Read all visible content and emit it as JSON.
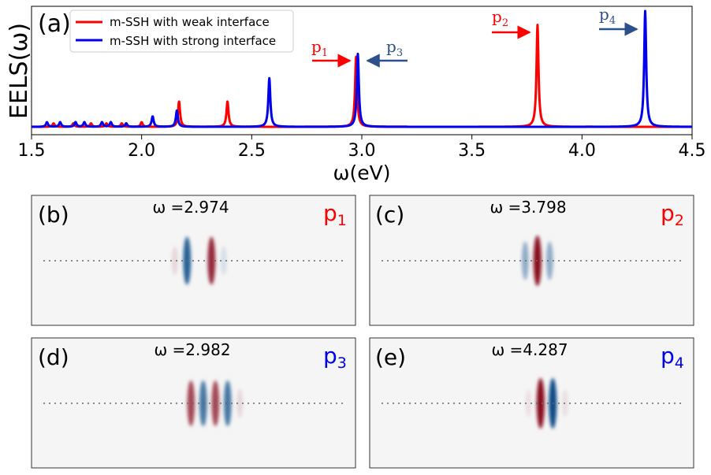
{
  "chart_data": [
    {
      "type": "line",
      "panel_label": "(a)",
      "ylabel": "EELS(ω)",
      "xlabel": "ω(eV)",
      "xlim": [
        1.5,
        4.5
      ],
      "x_ticks": [
        "1.5",
        "2.0",
        "2.5",
        "3.0",
        "3.5",
        "4.0",
        "4.5"
      ],
      "y_ticks_shown": false,
      "legend": [
        {
          "label": "m-SSH with weak interface",
          "color": "#ff0000"
        },
        {
          "label": "m-SSH with strong interface",
          "color": "#0000ee"
        }
      ],
      "series": [
        {
          "name": "m-SSH with weak interface",
          "color": "#ff0000",
          "peaks": [
            {
              "x": 1.6,
              "y": 0.03
            },
            {
              "x": 1.69,
              "y": 0.03
            },
            {
              "x": 1.77,
              "y": 0.03
            },
            {
              "x": 1.84,
              "y": 0.03
            },
            {
              "x": 1.91,
              "y": 0.03
            },
            {
              "x": 2.0,
              "y": 0.04
            },
            {
              "x": 2.17,
              "y": 0.22
            },
            {
              "x": 2.39,
              "y": 0.22
            },
            {
              "x": 2.974,
              "y": 0.61
            },
            {
              "x": 3.798,
              "y": 0.88
            }
          ]
        },
        {
          "name": "m-SSH with strong interface",
          "color": "#0000ee",
          "peaks": [
            {
              "x": 1.57,
              "y": 0.04
            },
            {
              "x": 1.63,
              "y": 0.04
            },
            {
              "x": 1.7,
              "y": 0.04
            },
            {
              "x": 1.74,
              "y": 0.04
            },
            {
              "x": 1.82,
              "y": 0.04
            },
            {
              "x": 1.86,
              "y": 0.04
            },
            {
              "x": 1.93,
              "y": 0.03
            },
            {
              "x": 2.05,
              "y": 0.09
            },
            {
              "x": 2.16,
              "y": 0.14
            },
            {
              "x": 2.58,
              "y": 0.42
            },
            {
              "x": 2.982,
              "y": 0.63
            },
            {
              "x": 4.287,
              "y": 1.0
            }
          ]
        }
      ],
      "annotations": [
        {
          "label": "p1",
          "base": "p",
          "sub": "1",
          "x": 2.974,
          "color": "#ff0000",
          "arrow": "right"
        },
        {
          "label": "p3",
          "base": "p",
          "sub": "3",
          "x": 2.982,
          "color": "#2d4f8a",
          "arrow": "left"
        },
        {
          "label": "p2",
          "base": "p",
          "sub": "2",
          "x": 3.798,
          "color": "#ff0000",
          "arrow": "right"
        },
        {
          "label": "p4",
          "base": "p",
          "sub": "4",
          "x": 4.287,
          "color": "#2d4f8a",
          "arrow": "right"
        }
      ]
    },
    {
      "type": "heatmap",
      "panel_label": "(b)",
      "title": "ω =2.974",
      "mode": {
        "base": "p",
        "sub": "1"
      },
      "mode_color": "#ff0000",
      "field_profile": [
        0,
        0,
        0,
        0,
        0,
        0,
        0.15,
        -0.55,
        0,
        0.55,
        -0.15,
        0,
        0,
        0,
        0,
        0
      ]
    },
    {
      "type": "heatmap",
      "panel_label": "(c)",
      "title": "ω =3.798",
      "mode": {
        "base": "p",
        "sub": "2"
      },
      "mode_color": "#ff0000",
      "field_profile": [
        0,
        0,
        0,
        0,
        0,
        0,
        0,
        -0.35,
        0.6,
        -0.35,
        0,
        0,
        0,
        0,
        0,
        0
      ]
    },
    {
      "type": "heatmap",
      "panel_label": "(d)",
      "title": "ω =2.982",
      "mode": {
        "base": "p",
        "sub": "3"
      },
      "mode_color": "#0000ee",
      "field_profile": [
        0,
        0,
        0,
        0,
        0,
        0,
        0,
        0.5,
        -0.5,
        0.5,
        -0.5,
        0.15,
        0,
        0,
        0,
        0
      ]
    },
    {
      "type": "heatmap",
      "panel_label": "(e)",
      "title": "ω =4.287",
      "mode": {
        "base": "p",
        "sub": "4"
      },
      "mode_color": "#0000ee",
      "field_profile": [
        0,
        0,
        0,
        0,
        0,
        0,
        0,
        0.12,
        0.6,
        -0.6,
        0.12,
        0,
        0,
        0,
        0,
        0
      ]
    }
  ]
}
